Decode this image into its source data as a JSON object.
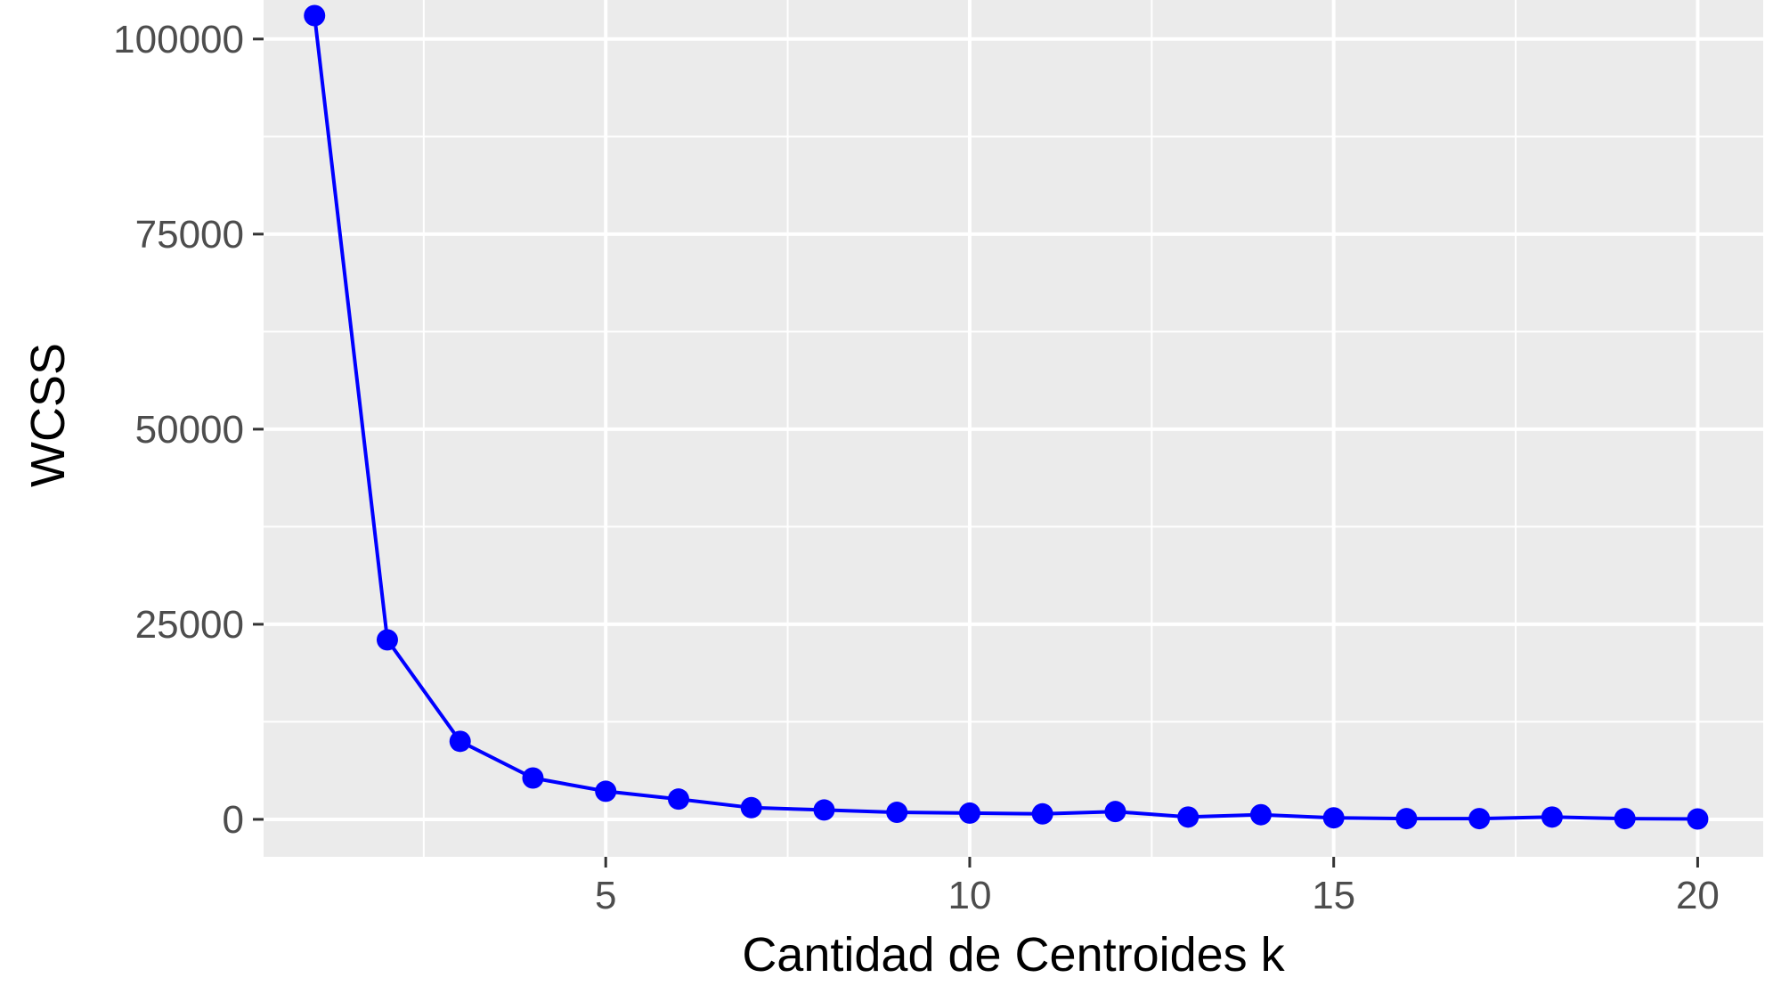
{
  "chart_data": {
    "type": "line",
    "title": "",
    "xlabel": "Cantidad de Centroides k",
    "ylabel": "WCSS",
    "xlim": [
      0.3,
      20.9
    ],
    "ylim": [
      -4800,
      105000
    ],
    "x_ticks": [
      5,
      10,
      15,
      20
    ],
    "x_tick_labels": [
      "5",
      "10",
      "15",
      "20"
    ],
    "y_ticks": [
      0,
      25000,
      50000,
      75000,
      100000
    ],
    "y_tick_labels": [
      "0",
      "25000",
      "50000",
      "75000",
      "100000"
    ],
    "grid": true,
    "legend": "none",
    "colors": {
      "series": "#0000ff",
      "panel_background": "#ebebeb",
      "grid": "#ffffff",
      "tick_label": "#4d4d4d",
      "tick_mark": "#333333"
    },
    "series": [
      {
        "x": [
          1,
          2,
          3,
          4,
          5,
          6,
          7,
          8,
          9,
          10,
          11,
          12,
          13,
          14,
          15,
          16,
          17,
          18,
          19,
          20
        ],
        "y": [
          103000,
          23000,
          10000,
          5300,
          3600,
          2600,
          1500,
          1200,
          900,
          800,
          700,
          1000,
          300,
          600,
          200,
          100,
          100,
          300,
          100,
          50
        ]
      }
    ]
  }
}
